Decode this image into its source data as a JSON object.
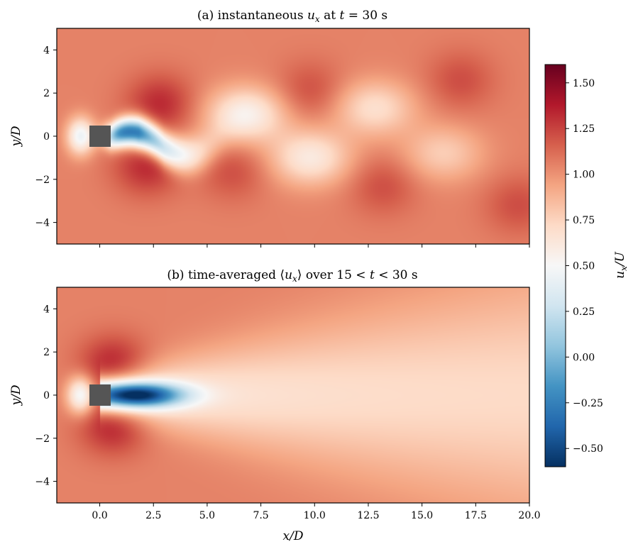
{
  "chart_data": [
    {
      "type": "heatmap",
      "title": "(a) instantaneous u_x at t = 30 s",
      "xlabel": "",
      "ylabel": "y/D",
      "xlim": [
        -2,
        20
      ],
      "ylim": [
        -5,
        5
      ],
      "xticks": [
        0,
        2.5,
        5,
        7.5,
        10,
        12.5,
        15,
        17.5,
        20
      ],
      "xticklabels": [
        "",
        "",
        "",
        "",
        "",
        "",
        "",
        "",
        ""
      ],
      "yticks": [
        4,
        2,
        0,
        -2,
        -4
      ],
      "yticklabels": [
        "4",
        "2",
        "0",
        "−2",
        "−4"
      ],
      "obstacle": {
        "shape": "square",
        "x": [
          -0.5,
          0.5
        ],
        "y": [
          -0.5,
          0.5
        ],
        "color": "#555555"
      },
      "field_features": {
        "freestream": 1.05,
        "wake_core_min": -0.35,
        "wake_pattern": "von Karman vortex street",
        "high_lobes": [
          {
            "x": 2.8,
            "y": 1.5,
            "value": 1.3
          },
          {
            "x": 2.2,
            "y": -1.4,
            "value": 1.3
          },
          {
            "x": 6.2,
            "y": -1.6,
            "value": 1.2
          },
          {
            "x": 9.8,
            "y": 2.1,
            "value": 1.2
          },
          {
            "x": 13.2,
            "y": -2.3,
            "value": 1.2
          },
          {
            "x": 16.8,
            "y": 2.6,
            "value": 1.2
          },
          {
            "x": 19.5,
            "y": -3.2,
            "value": 1.2
          }
        ],
        "low_lobes": [
          {
            "x": 6.8,
            "y": 1.0,
            "value": 0.6
          },
          {
            "x": 9.8,
            "y": -1.0,
            "value": 0.65
          },
          {
            "x": 12.8,
            "y": 1.3,
            "value": 0.72
          },
          {
            "x": 16.0,
            "y": -0.8,
            "value": 0.8
          }
        ]
      }
    },
    {
      "type": "heatmap",
      "title": "(b) time-averaged ⟨u_x⟩ over 15 < t < 30 s",
      "xlabel": "x/D",
      "ylabel": "y/D",
      "xlim": [
        -2,
        20
      ],
      "ylim": [
        -5,
        5
      ],
      "xticks": [
        0,
        2.5,
        5,
        7.5,
        10,
        12.5,
        15,
        17.5,
        20
      ],
      "xticklabels": [
        "0.0",
        "2.5",
        "5.0",
        "7.5",
        "10.0",
        "12.5",
        "15.0",
        "17.5",
        "20.0"
      ],
      "yticks": [
        4,
        2,
        0,
        -2,
        -4
      ],
      "yticklabels": [
        "4",
        "2",
        "0",
        "−2",
        "−4"
      ],
      "obstacle": {
        "shape": "square",
        "x": [
          -0.5,
          0.5
        ],
        "y": [
          -0.5,
          0.5
        ],
        "color": "#555555"
      },
      "field_features": {
        "freestream": 1.05,
        "wake_core_min": -0.3,
        "recirculation_length": 3.8,
        "wake_pattern": "symmetric widening wake, recovering downstream"
      }
    }
  ],
  "colorbar": {
    "label": "u_x/U",
    "colormap": "RdBu_r",
    "range": [
      -0.6,
      1.6
    ],
    "ticks": [
      1.5,
      1.25,
      1.0,
      0.75,
      0.5,
      0.25,
      0.0,
      -0.25,
      -0.5
    ],
    "ticklabels": [
      "1.50",
      "1.25",
      "1.00",
      "0.75",
      "0.50",
      "0.25",
      "0.00",
      "−0.25",
      "−0.50"
    ],
    "stops": [
      "#053061",
      "#2166ac",
      "#4393c3",
      "#92c5de",
      "#d1e5f0",
      "#f7f7f7",
      "#fddbc7",
      "#f4a582",
      "#d6604d",
      "#b2182b",
      "#67001f"
    ]
  }
}
